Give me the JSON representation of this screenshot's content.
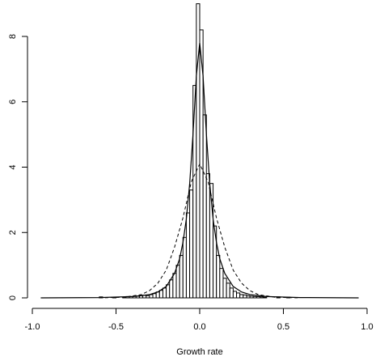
{
  "chart_data": {
    "type": "bar",
    "title": "",
    "xlabel": "Growth rate",
    "ylabel": "",
    "xlim": [
      -1.0,
      1.0
    ],
    "ylim": [
      0,
      9
    ],
    "grid": false,
    "x_ticks": [
      "-1.0",
      "-0.5",
      "0.0",
      "0.5",
      "1.0"
    ],
    "y_ticks": [
      "0",
      "2",
      "4",
      "6",
      "8"
    ],
    "histogram": {
      "bin_width": 0.02,
      "bin_starts": [
        -0.6,
        -0.58,
        -0.56,
        -0.54,
        -0.52,
        -0.5,
        -0.48,
        -0.46,
        -0.44,
        -0.42,
        -0.4,
        -0.38,
        -0.36,
        -0.34,
        -0.32,
        -0.3,
        -0.28,
        -0.26,
        -0.24,
        -0.22,
        -0.2,
        -0.18,
        -0.16,
        -0.14,
        -0.12,
        -0.1,
        -0.08,
        -0.06,
        -0.04,
        -0.02,
        0.0,
        0.02,
        0.04,
        0.06,
        0.08,
        0.1,
        0.12,
        0.14,
        0.16,
        0.18,
        0.2,
        0.22,
        0.24,
        0.26,
        0.28,
        0.3,
        0.32,
        0.34,
        0.36,
        0.38,
        0.4,
        0.42,
        0.44,
        0.46,
        0.48,
        0.5,
        0.52
      ],
      "densities": [
        0.03,
        0.0,
        0.0,
        0.0,
        0.02,
        0.0,
        0.0,
        0.02,
        0.04,
        0.04,
        0.05,
        0.05,
        0.06,
        0.08,
        0.07,
        0.1,
        0.13,
        0.18,
        0.23,
        0.3,
        0.4,
        0.55,
        0.75,
        1.0,
        1.3,
        1.85,
        2.6,
        3.3,
        6.5,
        9.0,
        8.2,
        5.6,
        3.8,
        3.5,
        2.2,
        1.3,
        0.9,
        0.6,
        0.45,
        0.3,
        0.2,
        0.15,
        0.1,
        0.09,
        0.06,
        0.05,
        0.04,
        0.04,
        0.03,
        0.02,
        0.0,
        0.0,
        0.0,
        0.03,
        0.0,
        0.0,
        0.02
      ]
    },
    "series": [
      {
        "style": "solid",
        "x": [
          -0.95,
          -0.6,
          -0.4,
          -0.3,
          -0.25,
          -0.2,
          -0.15,
          -0.12,
          -0.1,
          -0.08,
          -0.06,
          -0.04,
          -0.02,
          0.0,
          0.02,
          0.04,
          0.06,
          0.08,
          0.1,
          0.12,
          0.15,
          0.2,
          0.25,
          0.3,
          0.4,
          0.6,
          0.95
        ],
        "y": [
          0.0,
          0.01,
          0.04,
          0.1,
          0.18,
          0.35,
          0.75,
          1.2,
          1.7,
          2.4,
          3.5,
          5.0,
          6.8,
          7.8,
          6.8,
          5.0,
          3.5,
          2.4,
          1.7,
          1.2,
          0.75,
          0.35,
          0.18,
          0.1,
          0.04,
          0.01,
          0.0
        ]
      },
      {
        "style": "dashed",
        "x": [
          -0.6,
          -0.45,
          -0.35,
          -0.3,
          -0.25,
          -0.2,
          -0.15,
          -0.1,
          -0.05,
          0.0,
          0.05,
          0.1,
          0.15,
          0.2,
          0.25,
          0.3,
          0.35,
          0.45,
          0.6
        ],
        "y": [
          0.0,
          0.02,
          0.1,
          0.22,
          0.45,
          0.85,
          1.55,
          2.45,
          3.55,
          4.1,
          3.55,
          2.45,
          1.55,
          0.85,
          0.45,
          0.22,
          0.1,
          0.02,
          0.0
        ]
      }
    ]
  }
}
